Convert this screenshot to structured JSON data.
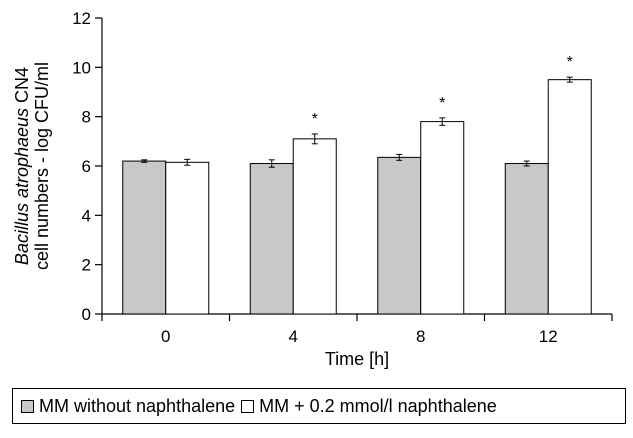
{
  "chart_data": {
    "type": "bar",
    "categories": [
      "0",
      "4",
      "8",
      "12"
    ],
    "series": [
      {
        "name": "MM without naphthalene",
        "values": [
          6.2,
          6.1,
          6.35,
          6.1
        ],
        "errors": [
          0.05,
          0.15,
          0.12,
          0.1
        ],
        "significant": [
          false,
          false,
          false,
          false
        ],
        "color": "#c8c8c8"
      },
      {
        "name": "MM + 0.2 mmol/l naphthalene",
        "values": [
          6.15,
          7.1,
          7.8,
          9.5
        ],
        "errors": [
          0.12,
          0.2,
          0.15,
          0.1
        ],
        "significant": [
          false,
          true,
          true,
          true
        ],
        "color": "#ffffff"
      }
    ],
    "xlabel": "Time [h]",
    "ylabel_italic": "Bacillus atrophaeus",
    "ylabel_rest": " CN4",
    "ylabel_line2": "cell numbers - log CFU/ml",
    "ylim": [
      0,
      12
    ],
    "yticks": [
      0,
      2,
      4,
      6,
      8,
      10,
      12
    ],
    "significance_marker": "*",
    "grid": false,
    "legend_position": "bottom"
  }
}
